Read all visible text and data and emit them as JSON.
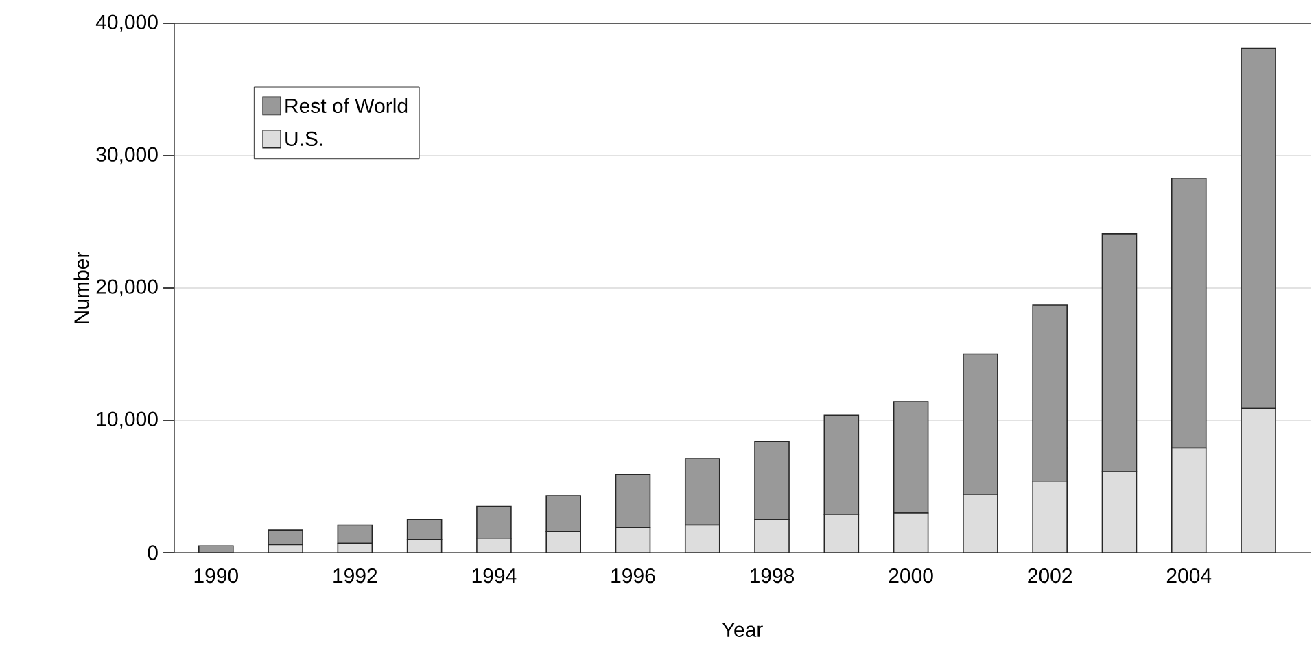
{
  "chart_data": {
    "type": "bar",
    "stacked": true,
    "xlabel": "Year",
    "ylabel": "Number",
    "categories": [
      "1990",
      null,
      "1992",
      null,
      "1994",
      null,
      "1996",
      null,
      "1998",
      null,
      "2000",
      null,
      "2002",
      null,
      "2004",
      null
    ],
    "series": [
      {
        "name": "U.S.",
        "color": "#dddddd",
        "values": [
          null,
          600,
          700,
          1000,
          1100,
          1600,
          1900,
          2100,
          2500,
          2900,
          3000,
          4400,
          5400,
          6100,
          7900,
          10900
        ]
      },
      {
        "name": "Rest of World",
        "color": "#999999",
        "values": [
          500,
          1100,
          1400,
          1500,
          2400,
          2700,
          4000,
          5000,
          5900,
          7500,
          8400,
          10600,
          13300,
          18000,
          20400,
          27200
        ]
      }
    ],
    "ylim": [
      0,
      40000
    ],
    "yticks": [
      {
        "value": 0,
        "label": "0"
      },
      {
        "value": 10000,
        "label": "10,000"
      },
      {
        "value": 20000,
        "label": "20,000"
      },
      {
        "value": 30000,
        "label": "30,000"
      },
      {
        "value": 40000,
        "label": "40,000"
      }
    ],
    "grid": "y",
    "legend": "top left"
  }
}
